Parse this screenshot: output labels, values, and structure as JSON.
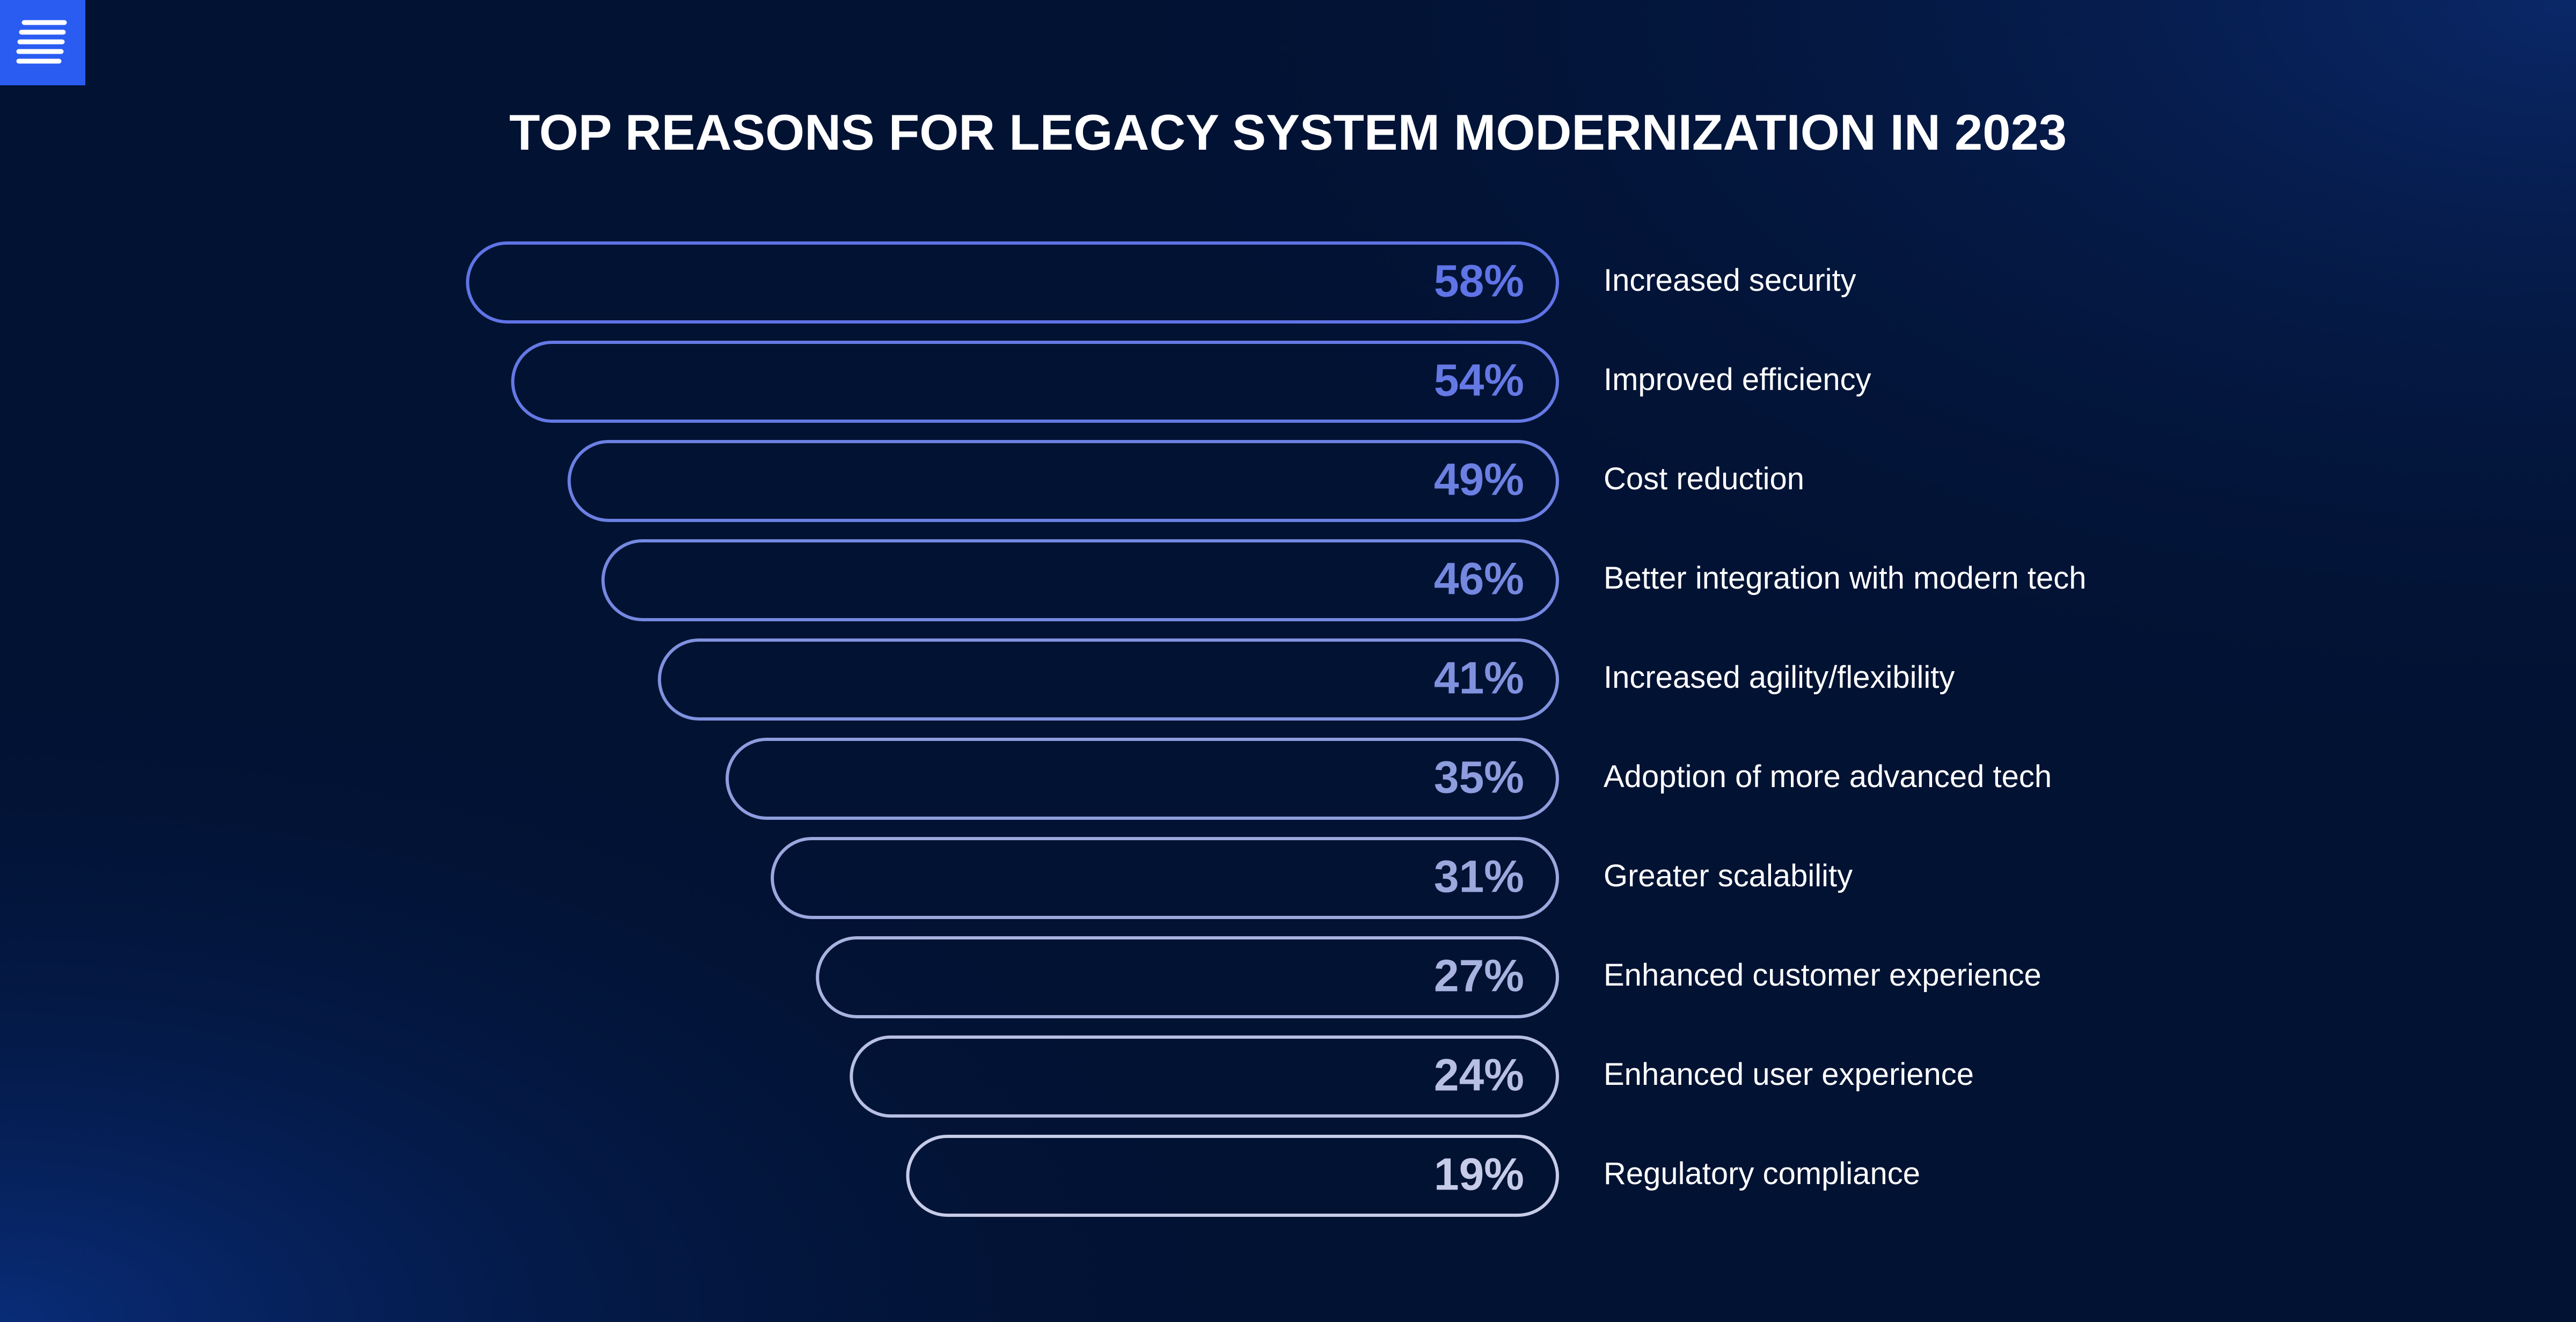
{
  "chart_data": {
    "type": "bar",
    "orientation": "horizontal",
    "title": "TOP REASONS FOR LEGACY SYSTEM MODERNIZATION IN 2023",
    "categories": [
      "Increased security",
      "Improved efficiency",
      "Cost reduction",
      "Better integration with modern tech",
      "Increased agility/flexibility",
      "Adoption of more advanced tech",
      "Greater scalability",
      "Enhanced customer experience",
      "Enhanced user experience",
      "Regulatory compliance"
    ],
    "values": [
      58,
      54,
      49,
      46,
      41,
      35,
      31,
      27,
      24,
      19
    ],
    "value_labels": [
      "58%",
      "54%",
      "49%",
      "46%",
      "41%",
      "35%",
      "31%",
      "27%",
      "24%",
      "19%"
    ],
    "colors": [
      "#5f74e6",
      "#6479e4",
      "#6b80e2",
      "#7588e0",
      "#8092de",
      "#8d9ddd",
      "#9ba8dd",
      "#a9b3df",
      "#b7bfe3",
      "#c6cce8"
    ]
  }
}
